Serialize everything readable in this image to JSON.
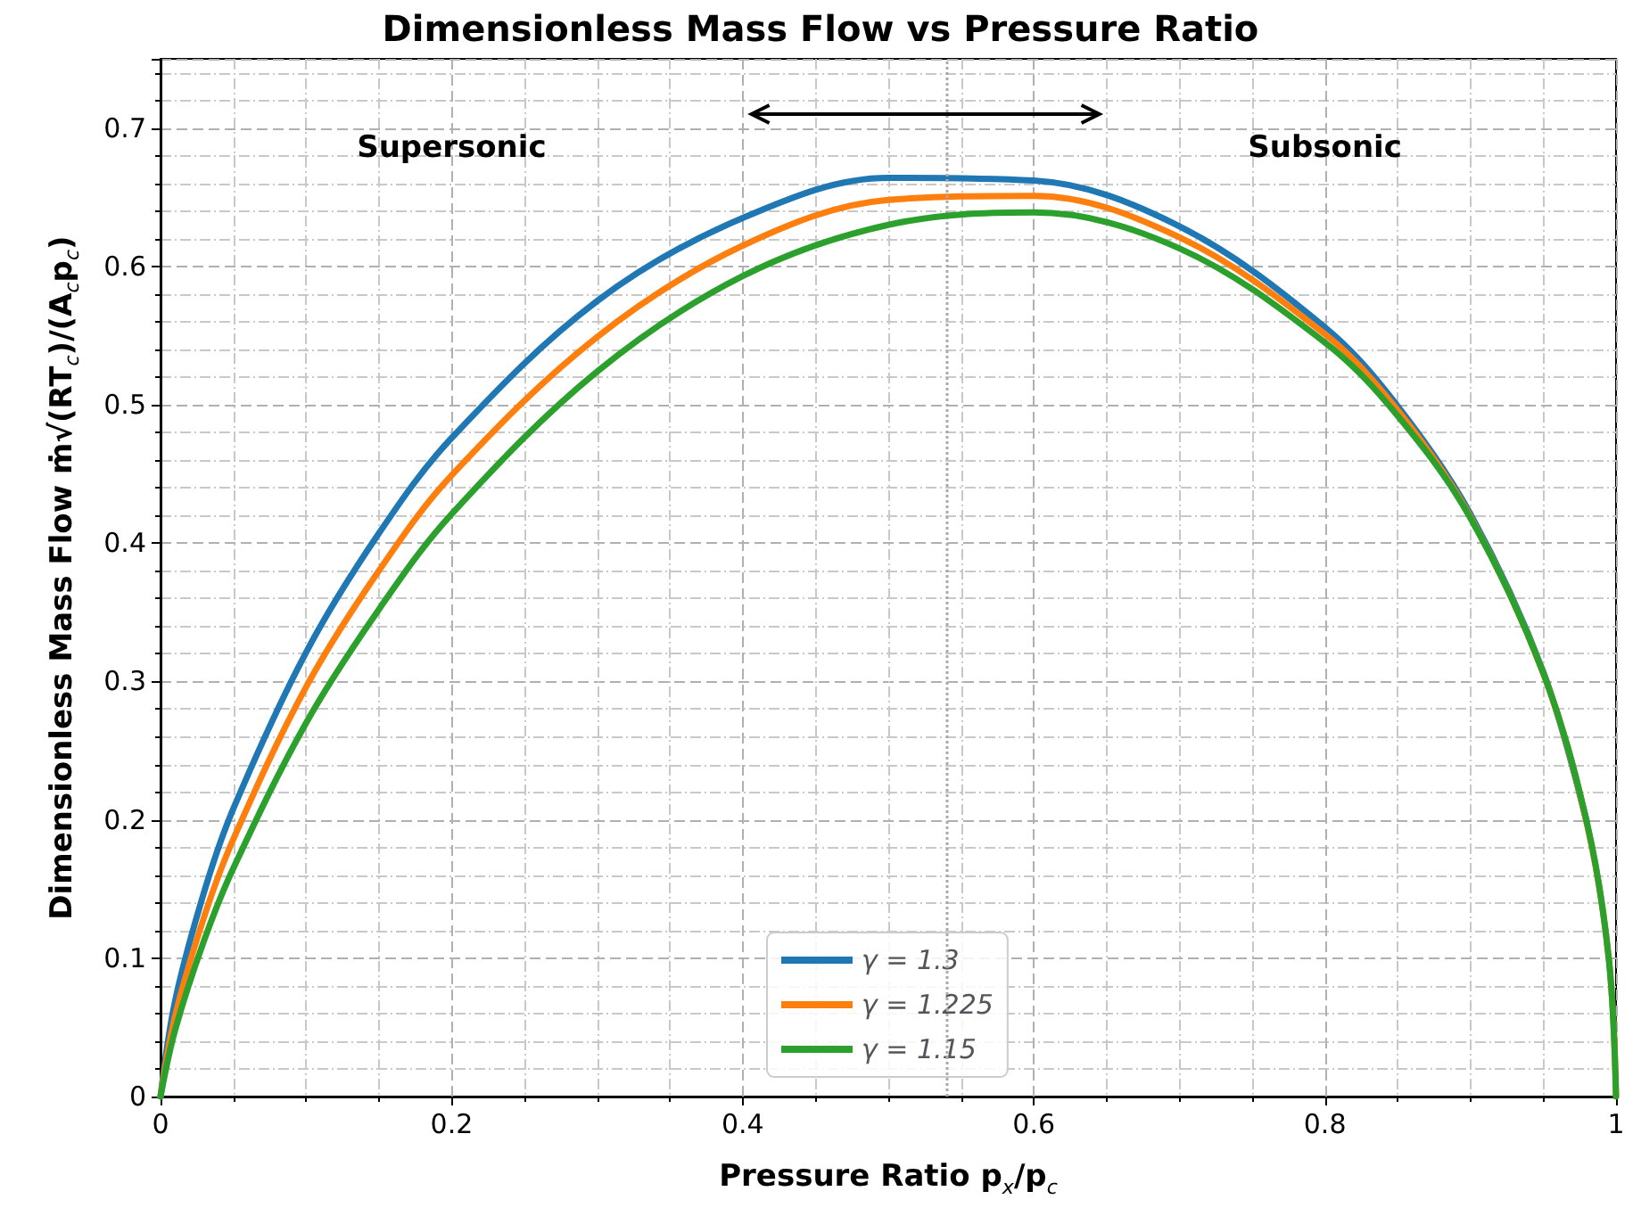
{
  "chart_data": {
    "type": "line",
    "title": "Dimensionless Mass Flow vs Pressure Ratio",
    "xlabel": "Pressure Ratio p$_{x}$/p$_{c}$",
    "ylabel": "Dimensionless Mass Flow ṁ√(RT$_{c}$)/(A$_{c}$p$_{c}$)",
    "x": [
      0,
      0.01,
      0.03,
      0.05,
      0.1,
      0.15,
      0.2,
      0.3,
      0.4,
      0.5,
      0.6,
      0.7,
      0.8,
      0.85,
      0.9,
      0.95,
      0.98,
      0.995,
      1
    ],
    "series": [
      {
        "name": "γ = 1.3",
        "color": "#1f77b4",
        "values": [
          0,
          0.069,
          0.148,
          0.208,
          0.321,
          0.407,
          0.476,
          0.575,
          0.635,
          0.664,
          0.662,
          0.629,
          0.556,
          0.499,
          0.421,
          0.307,
          0.198,
          null,
          null
        ]
      },
      {
        "name": "γ = 1.225",
        "color": "#ff7f0e",
        "values": [
          0,
          0.058,
          0.13,
          0.186,
          0.296,
          0.38,
          0.449,
          0.549,
          0.615,
          0.648,
          0.651,
          0.621,
          0.551,
          0.496,
          0.419,
          0.306,
          0.197,
          0.1,
          0
        ]
      },
      {
        "name": "γ = 1.15",
        "color": "#2ca02c",
        "values": [
          0,
          0.048,
          0.113,
          0.165,
          0.27,
          0.352,
          0.421,
          0.524,
          0.593,
          0.63,
          0.639,
          0.613,
          0.545,
          0.492,
          0.418,
          0.306,
          0.198,
          0.1,
          0
        ]
      }
    ],
    "xlim": [
      0,
      1
    ],
    "xticks": [
      0,
      0.2,
      0.4,
      0.6,
      0.8,
      1
    ],
    "ylim": [
      0,
      0.75
    ],
    "yticks": [
      0,
      0.1,
      0.2,
      0.3,
      0.4,
      0.5,
      0.6,
      0.7
    ],
    "ref_lines": [
      {
        "axis": "x",
        "value": 0.54,
        "label": null,
        "color": "#aaaaaa",
        "line_style": "dotted"
      }
    ],
    "annotations": [
      "Supersonic",
      "Subsonic"
    ],
    "grid": true,
    "legend": "bottom",
    "marker": "none",
    "line_style": "solid"
  }
}
